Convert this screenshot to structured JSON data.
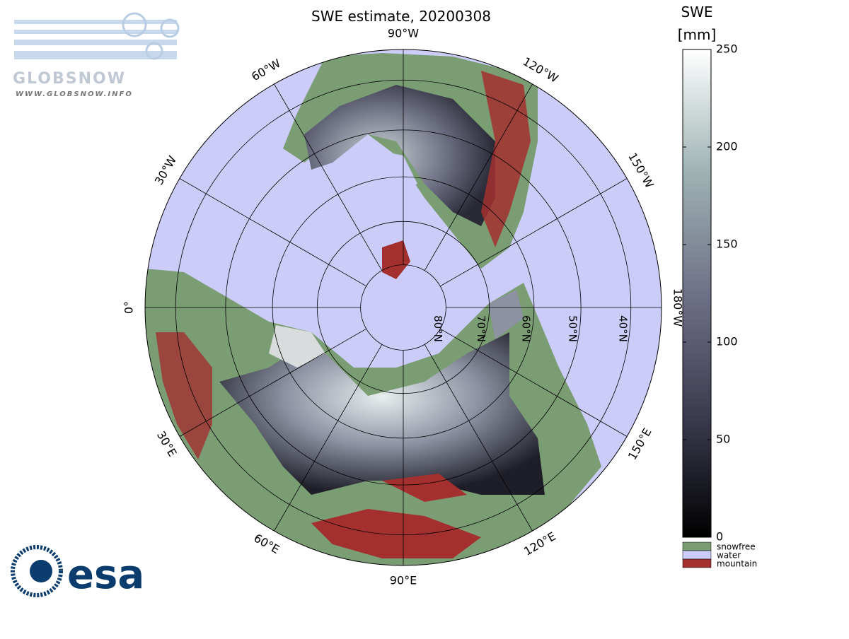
{
  "title": "SWE estimate, 20200308",
  "logo": {
    "name": "GLOBSNOW",
    "url": "WWW.GLOBSNOW.INFO",
    "agency": "esa"
  },
  "map": {
    "longitudes": [
      {
        "value": -90,
        "label": "90°W"
      },
      {
        "value": -60,
        "label": "60°W"
      },
      {
        "value": -30,
        "label": "30°W"
      },
      {
        "value": 0,
        "label": "0°"
      },
      {
        "value": 30,
        "label": "30°E"
      },
      {
        "value": 60,
        "label": "60°E"
      },
      {
        "value": 90,
        "label": "90°E"
      },
      {
        "value": 120,
        "label": "120°E"
      },
      {
        "value": 150,
        "label": "150°E"
      },
      {
        "value": 180,
        "label": "180°W"
      },
      {
        "value": -150,
        "label": "150°W"
      },
      {
        "value": -120,
        "label": "120°W"
      }
    ],
    "latitudes": [
      {
        "value": 80,
        "label": "80°N"
      },
      {
        "value": 70,
        "label": "70°N"
      },
      {
        "value": 60,
        "label": "60°N"
      },
      {
        "value": 50,
        "label": "50°N"
      },
      {
        "value": 40,
        "label": "40°N"
      }
    ]
  },
  "colorbar": {
    "title": "SWE",
    "unit": "[mm]",
    "range": [
      0,
      250
    ],
    "ticks": [
      0,
      50,
      100,
      150,
      200,
      250
    ],
    "legend": [
      {
        "label": "snowfree",
        "color": "#7b9d74"
      },
      {
        "label": "water",
        "color": "#ccccf8"
      },
      {
        "label": "mountain",
        "color": "#a3302f"
      }
    ]
  }
}
